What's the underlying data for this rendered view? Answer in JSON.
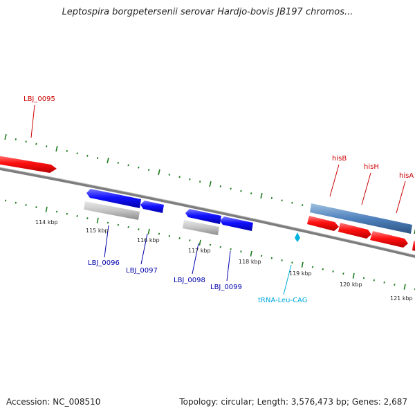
{
  "title": "Leptospira borgpetersenii serovar Hardjo-bovis JB197 chromos...",
  "footer": {
    "accession": "Accession: NC_008510",
    "summary": "Topology: circular; Length: 3,576,473 bp; Genes: 2,687"
  },
  "colors": {
    "forward_gene": "#ff0000",
    "reverse_gene": "#0000ee",
    "pseudo_gene": "#b8b8b8",
    "operon": "#4f81bd",
    "trna": "#00b4e0",
    "tick": "#1a7a1a",
    "backbone": "#888888",
    "label_forward": "#cc0000",
    "label_reverse": "#0000aa",
    "label_trna": "#00aadd"
  },
  "kbp_ticks": [
    "114 kbp",
    "115 kbp",
    "116 kbp",
    "117 kbp",
    "118 kbp",
    "119 kbp",
    "120 kbp",
    "121 kbp"
  ],
  "gene_labels": {
    "lbj_0095": "LBJ_0095",
    "hisB": "hisB",
    "hisH": "hisH",
    "hisA": "hisA",
    "lbj_0096": "LBJ_0096",
    "lbj_0097": "LBJ_0097",
    "lbj_0098": "LBJ_0098",
    "lbj_0099": "LBJ_0099",
    "trna": "tRNA-Leu-CAG"
  }
}
